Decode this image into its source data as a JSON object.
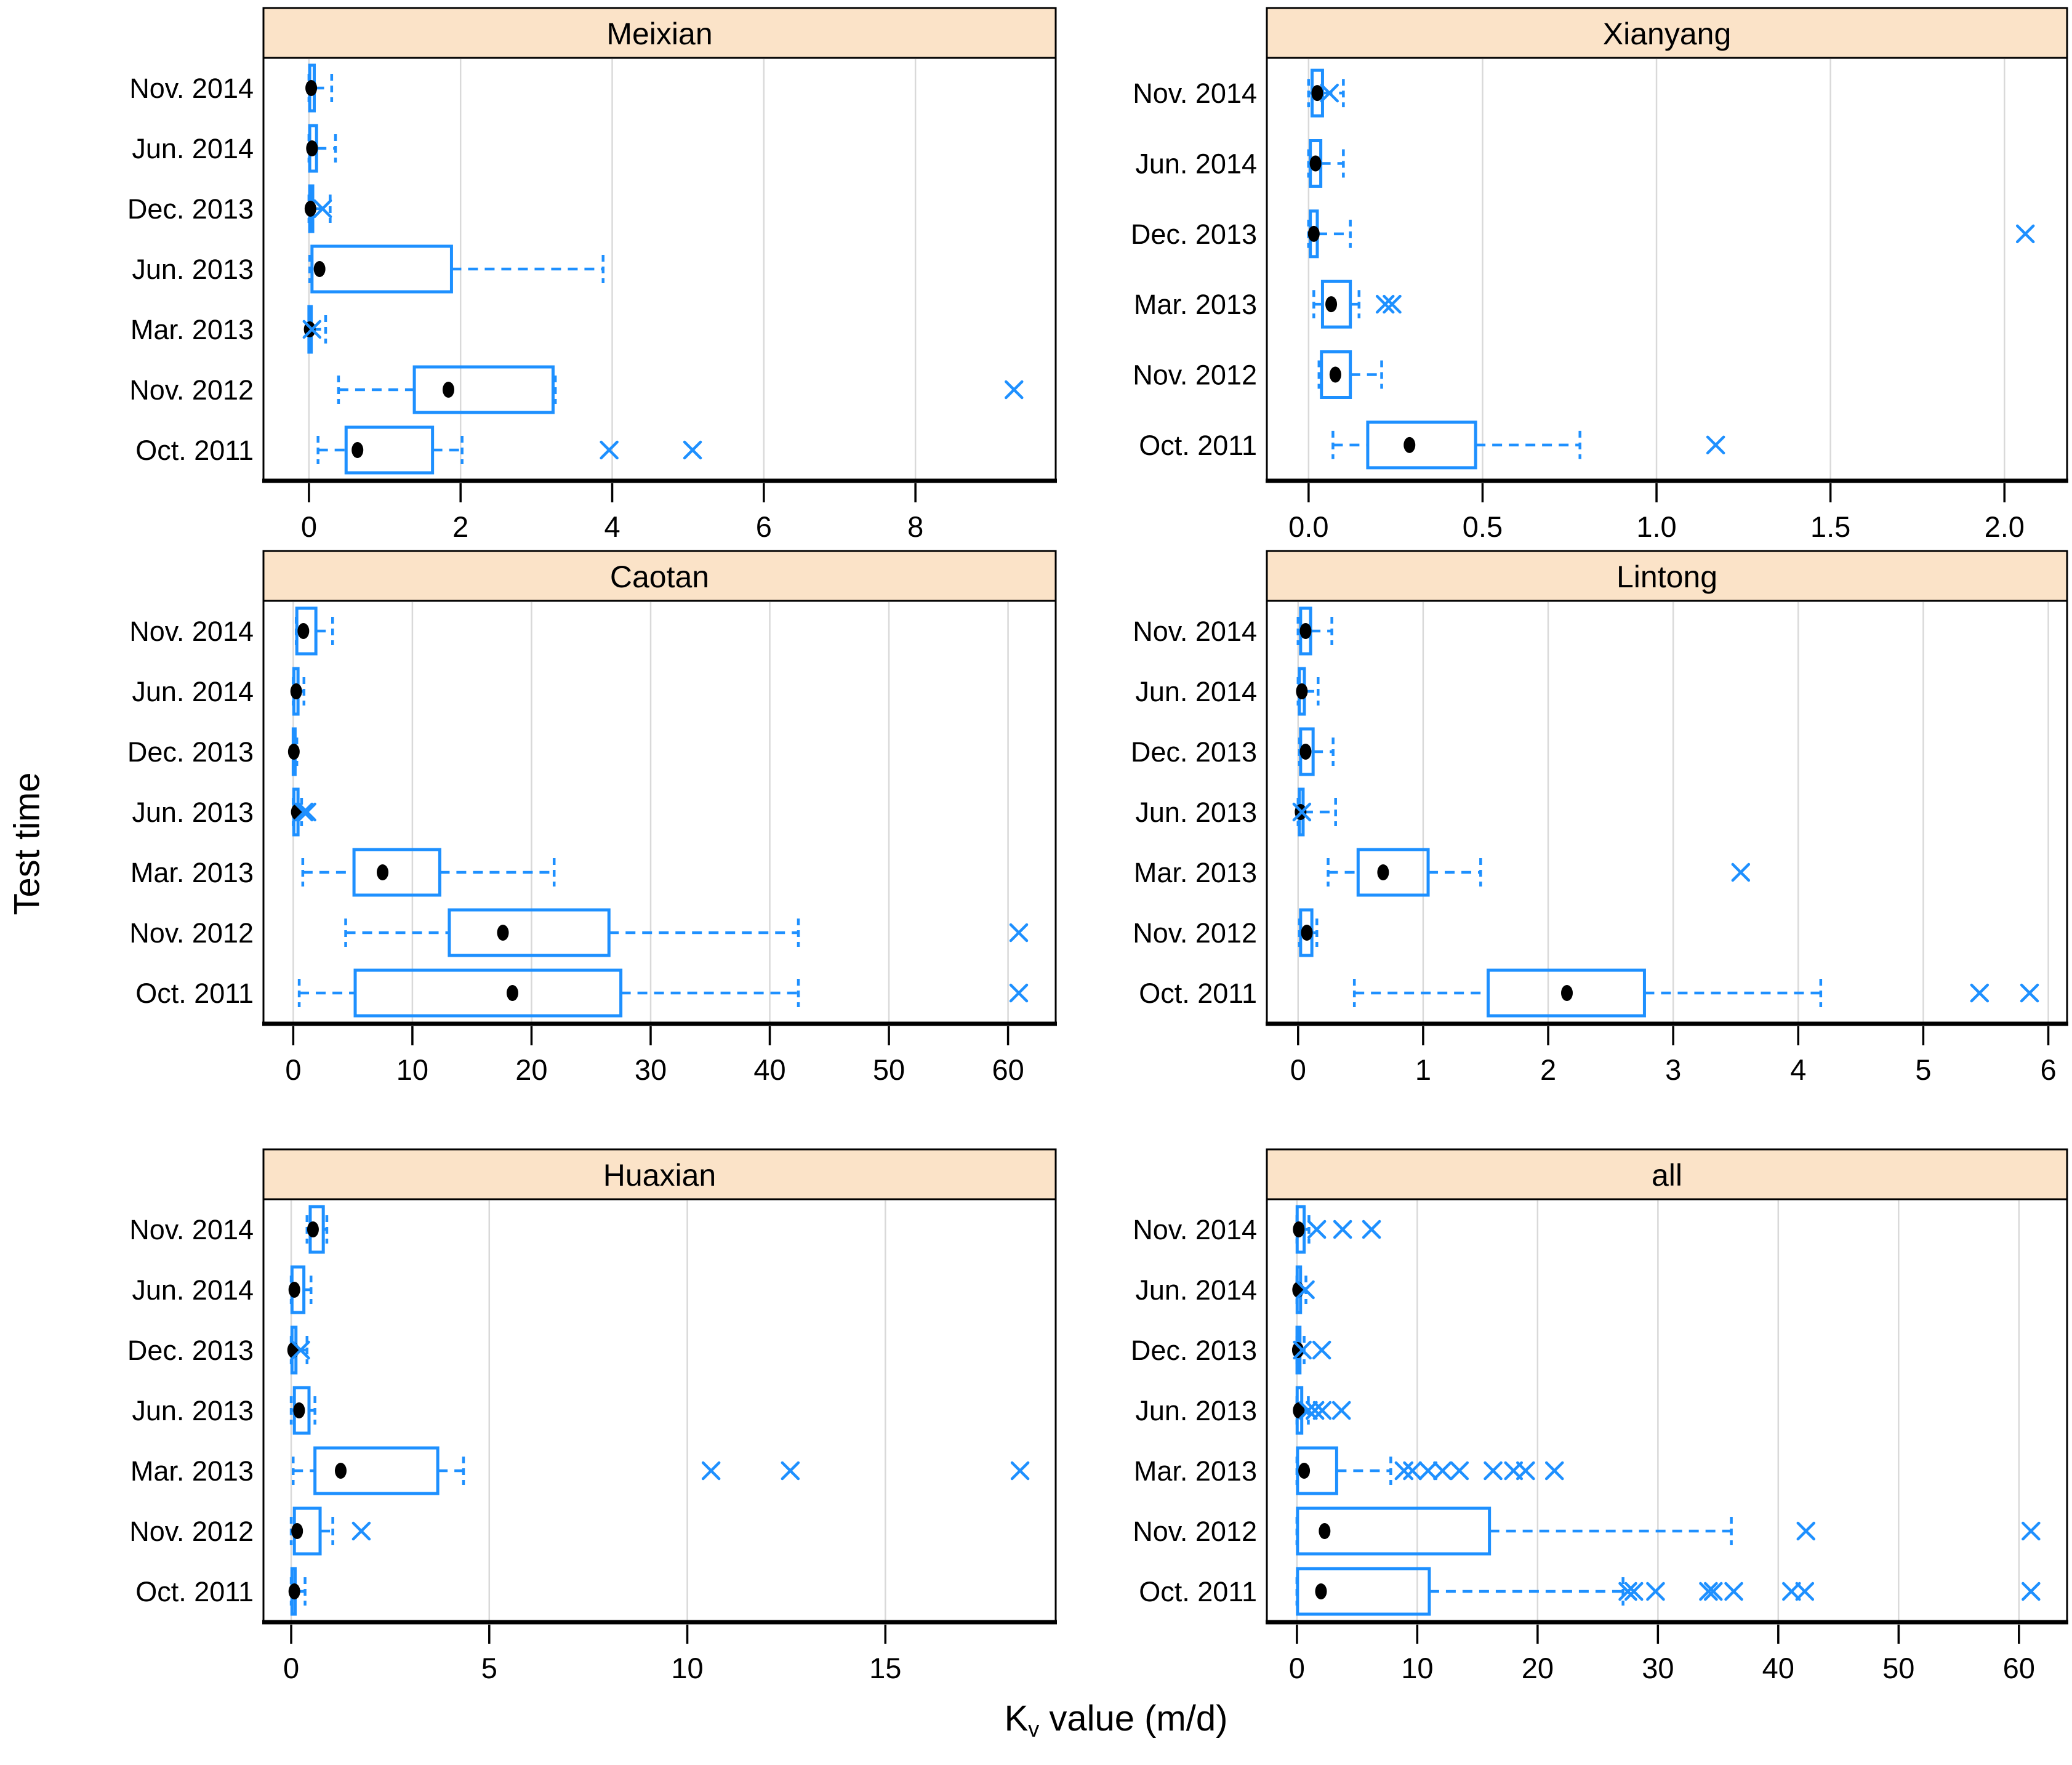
{
  "figure": {
    "ylabel": "Test time",
    "xlabel_k": "K",
    "xlabel_sub": "v",
    "xlabel_rest": " value (m/d)"
  },
  "style": {
    "box_color": "#1e90ff",
    "header_fill": "#fbe3c8",
    "grid_color": "#d9d9d9",
    "border_color": "#000000",
    "mean_color": "#000000"
  },
  "chart_data": [
    {
      "type": "boxplot",
      "orientation": "horizontal",
      "title": "Meixian",
      "grid_row": 0,
      "grid_col": 0,
      "xlim": [
        -0.6,
        9.85
      ],
      "ticks": [
        0,
        2,
        4,
        6,
        8
      ],
      "tick_labels": [
        "0",
        "2",
        "4",
        "6",
        "8"
      ],
      "rows": [
        {
          "label": "Nov. 2014",
          "whisker_low": 0,
          "q1": 0.01,
          "q3": 0.07,
          "whisker_high": 0.3,
          "mean": 0.03,
          "outliers": []
        },
        {
          "label": "Jun. 2014",
          "whisker_low": 0,
          "q1": 0.01,
          "q3": 0.1,
          "whisker_high": 0.35,
          "mean": 0.04,
          "outliers": []
        },
        {
          "label": "Dec. 2013",
          "whisker_low": 0,
          "q1": 0.01,
          "q3": 0.05,
          "whisker_high": 0.28,
          "mean": 0.02,
          "outliers": [
            0.18
          ]
        },
        {
          "label": "Jun. 2013",
          "whisker_low": 0.01,
          "q1": 0.04,
          "q3": 1.88,
          "whisker_high": 3.88,
          "mean": 0.14,
          "outliers": []
        },
        {
          "label": "Mar. 2013",
          "whisker_low": 0,
          "q1": 0,
          "q3": 0.03,
          "whisker_high": 0.22,
          "mean": 0.01,
          "outliers": [
            0.04
          ]
        },
        {
          "label": "Nov. 2012",
          "whisker_low": 0.39,
          "q1": 1.39,
          "q3": 3.22,
          "whisker_high": 3.25,
          "mean": 1.84,
          "outliers": [
            9.3
          ]
        },
        {
          "label": "Oct. 2011",
          "whisker_low": 0.12,
          "q1": 0.49,
          "q3": 1.63,
          "whisker_high": 2.02,
          "mean": 0.64,
          "outliers": [
            3.96,
            5.06
          ]
        }
      ]
    },
    {
      "type": "boxplot",
      "orientation": "horizontal",
      "title": "Xianyang",
      "grid_row": 0,
      "grid_col": 1,
      "xlim": [
        -0.12,
        2.18
      ],
      "ticks": [
        0,
        0.5,
        1.0,
        1.5,
        2.0
      ],
      "tick_labels": [
        "0.0",
        "0.5",
        "1.0",
        "1.5",
        "2.0"
      ],
      "rows": [
        {
          "label": "Nov. 2014",
          "whisker_low": 0,
          "q1": 0.01,
          "q3": 0.04,
          "whisker_high": 0.1,
          "mean": 0.025,
          "outliers": [
            0.06
          ]
        },
        {
          "label": "Jun. 2014",
          "whisker_low": 0,
          "q1": 0.005,
          "q3": 0.035,
          "whisker_high": 0.1,
          "mean": 0.02,
          "outliers": []
        },
        {
          "label": "Dec. 2013",
          "whisker_low": 0,
          "q1": 0.005,
          "q3": 0.025,
          "whisker_high": 0.12,
          "mean": 0.015,
          "outliers": [
            2.06
          ]
        },
        {
          "label": "Mar. 2013",
          "whisker_low": 0.015,
          "q1": 0.04,
          "q3": 0.12,
          "whisker_high": 0.145,
          "mean": 0.065,
          "outliers": [
            0.22,
            0.24
          ]
        },
        {
          "label": "Nov. 2012",
          "whisker_low": 0.03,
          "q1": 0.037,
          "q3": 0.12,
          "whisker_high": 0.21,
          "mean": 0.077,
          "outliers": []
        },
        {
          "label": "Oct. 2011",
          "whisker_low": 0.07,
          "q1": 0.17,
          "q3": 0.48,
          "whisker_high": 0.78,
          "mean": 0.29,
          "outliers": [
            1.17
          ]
        }
      ]
    },
    {
      "type": "boxplot",
      "orientation": "horizontal",
      "title": "Caotan",
      "grid_row": 1,
      "grid_col": 0,
      "xlim": [
        -2.5,
        64
      ],
      "ticks": [
        0,
        10,
        20,
        30,
        40,
        50,
        60
      ],
      "tick_labels": [
        "0",
        "10",
        "20",
        "30",
        "40",
        "50",
        "60"
      ],
      "rows": [
        {
          "label": "Nov. 2014",
          "whisker_low": 0.25,
          "q1": 0.3,
          "q3": 1.9,
          "whisker_high": 3.3,
          "mean": 0.85,
          "outliers": []
        },
        {
          "label": "Jun. 2014",
          "whisker_low": 0,
          "q1": 0.05,
          "q3": 0.4,
          "whisker_high": 0.9,
          "mean": 0.25,
          "outliers": []
        },
        {
          "label": "Dec. 2013",
          "whisker_low": 0,
          "q1": 0,
          "q3": 0.15,
          "whisker_high": 0.3,
          "mean": 0.05,
          "outliers": []
        },
        {
          "label": "Jun. 2013",
          "whisker_low": 0,
          "q1": 0.05,
          "q3": 0.4,
          "whisker_high": 0.7,
          "mean": 0.3,
          "outliers": [
            0.9,
            1.15
          ]
        },
        {
          "label": "Mar. 2013",
          "whisker_low": 0.8,
          "q1": 5.1,
          "q3": 12.3,
          "whisker_high": 21.9,
          "mean": 7.5,
          "outliers": []
        },
        {
          "label": "Nov. 2012",
          "whisker_low": 4.4,
          "q1": 13.1,
          "q3": 26.5,
          "whisker_high": 42.4,
          "mean": 17.6,
          "outliers": [
            60.9
          ]
        },
        {
          "label": "Oct. 2011",
          "whisker_low": 0.5,
          "q1": 5.2,
          "q3": 27.5,
          "whisker_high": 42.4,
          "mean": 18.4,
          "outliers": [
            60.9
          ]
        }
      ]
    },
    {
      "type": "boxplot",
      "orientation": "horizontal",
      "title": "Lintong",
      "grid_row": 1,
      "grid_col": 1,
      "xlim": [
        -0.25,
        6.15
      ],
      "ticks": [
        0,
        1,
        2,
        3,
        4,
        5,
        6
      ],
      "tick_labels": [
        "0",
        "1",
        "2",
        "3",
        "4",
        "5",
        "6"
      ],
      "rows": [
        {
          "label": "Nov. 2014",
          "whisker_low": 0,
          "q1": 0.02,
          "q3": 0.1,
          "whisker_high": 0.27,
          "mean": 0.06,
          "outliers": []
        },
        {
          "label": "Jun. 2014",
          "whisker_low": 0,
          "q1": 0.01,
          "q3": 0.05,
          "whisker_high": 0.16,
          "mean": 0.03,
          "outliers": []
        },
        {
          "label": "Dec. 2013",
          "whisker_low": 0.01,
          "q1": 0.02,
          "q3": 0.12,
          "whisker_high": 0.28,
          "mean": 0.06,
          "outliers": []
        },
        {
          "label": "Jun. 2013",
          "whisker_low": 0,
          "q1": 0.01,
          "q3": 0.04,
          "whisker_high": 0.3,
          "mean": 0.02,
          "outliers": [
            0.03
          ]
        },
        {
          "label": "Mar. 2013",
          "whisker_low": 0.24,
          "q1": 0.48,
          "q3": 1.04,
          "whisker_high": 1.46,
          "mean": 0.68,
          "outliers": [
            3.54
          ]
        },
        {
          "label": "Nov. 2012",
          "whisker_low": 0.01,
          "q1": 0.02,
          "q3": 0.11,
          "whisker_high": 0.15,
          "mean": 0.07,
          "outliers": []
        },
        {
          "label": "Oct. 2011",
          "whisker_low": 0.45,
          "q1": 1.52,
          "q3": 2.77,
          "whisker_high": 4.18,
          "mean": 2.15,
          "outliers": [
            5.45,
            5.85
          ]
        }
      ]
    },
    {
      "type": "boxplot",
      "orientation": "horizontal",
      "title": "Huaxian",
      "grid_row": 2,
      "grid_col": 0,
      "xlim": [
        -0.7,
        19.3
      ],
      "ticks": [
        0,
        5,
        10,
        15
      ],
      "tick_labels": [
        "0",
        "5",
        "10",
        "15"
      ],
      "rows": [
        {
          "label": "Nov. 2014",
          "whisker_low": 0.4,
          "q1": 0.48,
          "q3": 0.81,
          "whisker_high": 0.9,
          "mean": 0.55,
          "outliers": []
        },
        {
          "label": "Jun. 2014",
          "whisker_low": 0,
          "q1": 0.02,
          "q3": 0.32,
          "whisker_high": 0.5,
          "mean": 0.08,
          "outliers": []
        },
        {
          "label": "Dec. 2013",
          "whisker_low": 0,
          "q1": 0.02,
          "q3": 0.12,
          "whisker_high": 0.4,
          "mean": 0.05,
          "outliers": [
            0.24
          ]
        },
        {
          "label": "Jun. 2013",
          "whisker_low": 0,
          "q1": 0.08,
          "q3": 0.45,
          "whisker_high": 0.6,
          "mean": 0.2,
          "outliers": []
        },
        {
          "label": "Mar. 2013",
          "whisker_low": 0.05,
          "q1": 0.6,
          "q3": 3.7,
          "whisker_high": 4.35,
          "mean": 1.25,
          "outliers": [
            10.6,
            12.6,
            18.4
          ]
        },
        {
          "label": "Nov. 2012",
          "whisker_low": 0,
          "q1": 0.08,
          "q3": 0.73,
          "whisker_high": 1.05,
          "mean": 0.15,
          "outliers": [
            1.77
          ]
        },
        {
          "label": "Oct. 2011",
          "whisker_low": 0,
          "q1": 0.02,
          "q3": 0.1,
          "whisker_high": 0.35,
          "mean": 0.08,
          "outliers": []
        }
      ]
    },
    {
      "type": "boxplot",
      "orientation": "horizontal",
      "title": "all",
      "grid_row": 2,
      "grid_col": 1,
      "xlim": [
        -2.5,
        64
      ],
      "ticks": [
        0,
        10,
        20,
        30,
        40,
        50,
        60
      ],
      "tick_labels": [
        "0",
        "10",
        "20",
        "30",
        "40",
        "50",
        "60"
      ],
      "rows": [
        {
          "label": "Nov. 2014",
          "whisker_low": 0,
          "q1": 0.02,
          "q3": 0.6,
          "whisker_high": 1.0,
          "mean": 0.15,
          "outliers": [
            1.65,
            3.8,
            6.2
          ]
        },
        {
          "label": "Jun. 2014",
          "whisker_low": 0,
          "q1": 0.02,
          "q3": 0.3,
          "whisker_high": 0.75,
          "mean": 0.1,
          "outliers": [
            0.7
          ]
        },
        {
          "label": "Dec. 2013",
          "whisker_low": 0,
          "q1": 0.01,
          "q3": 0.25,
          "whisker_high": 0.6,
          "mean": 0.08,
          "outliers": [
            0.45,
            2.06
          ]
        },
        {
          "label": "Jun. 2013",
          "whisker_low": 0,
          "q1": 0.02,
          "q3": 0.4,
          "whisker_high": 0.95,
          "mean": 0.15,
          "outliers": [
            0.95,
            1.5,
            2.1,
            3.7
          ]
        },
        {
          "label": "Mar. 2013",
          "whisker_low": 0,
          "q1": 0.05,
          "q3": 3.3,
          "whisker_high": 7.8,
          "mean": 0.6,
          "outliers": [
            8.9,
            9.6,
            10.9,
            12.1,
            13.5,
            16.3,
            18.0,
            19.0,
            21.4
          ]
        },
        {
          "label": "Nov. 2012",
          "whisker_low": 0,
          "q1": 0.05,
          "q3": 16.0,
          "whisker_high": 36.1,
          "mean": 2.3,
          "outliers": [
            42.3,
            61.0
          ]
        },
        {
          "label": "Oct. 2011",
          "whisker_low": 0,
          "q1": 0.05,
          "q3": 11.0,
          "whisker_high": 27.1,
          "mean": 2.0,
          "outliers": [
            27.5,
            28.0,
            29.8,
            34.2,
            34.6,
            36.3,
            41.1,
            42.2,
            61.0
          ]
        }
      ]
    }
  ]
}
